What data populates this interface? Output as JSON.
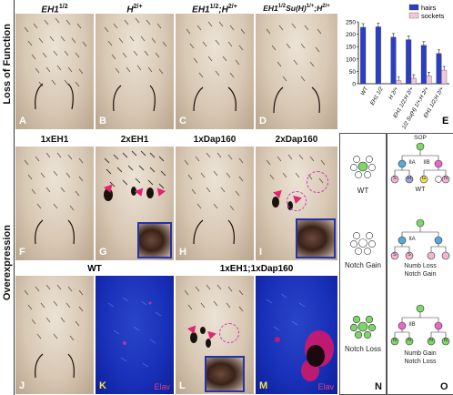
{
  "row_labels": {
    "top": "Loss of Function",
    "bottom": "Overexpression"
  },
  "top_panels": [
    {
      "title": "EH1",
      "sup": "1/2",
      "rest": "",
      "rest_sup": "",
      "letter": "A"
    },
    {
      "title": "H",
      "sup": "2/+",
      "rest": "",
      "rest_sup": "",
      "letter": "B"
    },
    {
      "title": "EH1",
      "sup": "1/2",
      "rest": ";H",
      "rest_sup": "2/+",
      "letter": "C"
    },
    {
      "title": "EH1",
      "sup": "1/2",
      "rest": "Su(H)",
      "rest_sup": "1/+",
      "rest2": ";H",
      "rest2_sup": "2/+",
      "letter": "D"
    }
  ],
  "mid_panels": [
    {
      "title": "1xEH1",
      "letter": "F"
    },
    {
      "title": "2xEH1",
      "letter": "G"
    },
    {
      "title": "1xDap160",
      "letter": "H"
    },
    {
      "title": "2xDap160",
      "letter": "I"
    }
  ],
  "bottom": {
    "wt_title": "WT",
    "combo_title": "1xEH1;1xDap160",
    "letters": [
      "J",
      "K",
      "L",
      "M"
    ],
    "stain": "Elav"
  },
  "chart_data": {
    "type": "bar",
    "categories": [
      "WT",
      "EH1 1/2",
      "H 2/+",
      "EH1 1/2;H 2/+",
      "EH1 1/2 Su(H) 1/+;H 2/+",
      "EH1 1/2;H 2/+"
    ],
    "series": [
      {
        "name": "hairs",
        "color": "#2c3fc4",
        "values": [
          228,
          230,
          188,
          178,
          155,
          122
        ]
      },
      {
        "name": "sockets",
        "color": "#f0c8dc",
        "values": [
          0,
          0,
          12,
          22,
          32,
          55
        ]
      }
    ],
    "ylim": [
      0,
      250
    ],
    "yticks": [
      0,
      50,
      100,
      150,
      200,
      250
    ],
    "letter": "E",
    "legend": "top-right"
  },
  "panel_N": {
    "letter": "N",
    "items": [
      "WT",
      "Notch Gain",
      "Notch Loss"
    ]
  },
  "panel_O": {
    "letter": "O",
    "sop": "SOP",
    "wt": {
      "iia": "IIA",
      "iib": "IIB",
      "leaves": [
        "S",
        "H",
        "G",
        "N"
      ],
      "label": "WT"
    },
    "gain": {
      "iia": "IIA",
      "leaves": [
        "S",
        "S"
      ],
      "label1": "Numb Loss",
      "label2": "Notch Gain"
    },
    "loss": {
      "iib": "IIB",
      "leaves": [
        "N",
        "N",
        "N",
        "N"
      ],
      "label1": "Numb Gain",
      "label2": "Notch Loss"
    }
  }
}
